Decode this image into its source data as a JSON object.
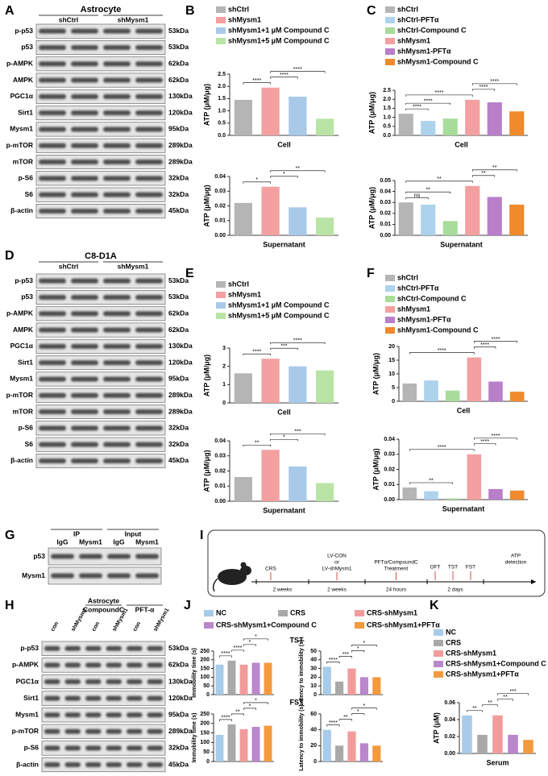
{
  "panels": [
    "A",
    "B",
    "C",
    "D",
    "E",
    "F",
    "G",
    "H",
    "I",
    "J",
    "K"
  ],
  "blots": [
    {
      "title": "Astrocyte",
      "groups": [
        "shCtrl",
        "shMysm1"
      ],
      "rows": [
        {
          "label": "p-p53",
          "size": "53kDa"
        },
        {
          "label": "p53",
          "size": "53kDa"
        },
        {
          "label": "p-AMPK",
          "size": "62kDa"
        },
        {
          "label": "AMPK",
          "size": "62kDa"
        },
        {
          "label": "PGC1α",
          "size": "130kDa"
        },
        {
          "label": "Sirt1",
          "size": "120kDa"
        },
        {
          "label": "Mysm1",
          "size": "95kDa"
        },
        {
          "label": "p-mTOR",
          "size": "289kDa"
        },
        {
          "label": "mTOR",
          "size": "289kDa"
        },
        {
          "label": "p-S6",
          "size": "32kDa"
        },
        {
          "label": "S6",
          "size": "32kDa"
        },
        {
          "label": "β-actin",
          "size": "45kDa"
        }
      ]
    },
    {
      "title": "C8-D1A",
      "groups": [
        "shCtrl",
        "shMysm1"
      ],
      "rows": [
        {
          "label": "p-p53",
          "size": "53kDa"
        },
        {
          "label": "p53",
          "size": "53kDa"
        },
        {
          "label": "p-AMPK",
          "size": "62kDa"
        },
        {
          "label": "AMPK",
          "size": "62kDa"
        },
        {
          "label": "PGC1α",
          "size": "130kDa"
        },
        {
          "label": "Sirt1",
          "size": "120kDa"
        },
        {
          "label": "Mysm1",
          "size": "95kDa"
        },
        {
          "label": "p-mTOR",
          "size": "289kDa"
        },
        {
          "label": "mTOR",
          "size": "289kDa"
        },
        {
          "label": "p-S6",
          "size": "32kDa"
        },
        {
          "label": "S6",
          "size": "32kDa"
        },
        {
          "label": "β-actin",
          "size": "45kDa"
        }
      ]
    },
    {
      "groups": [
        "IP",
        "Input"
      ],
      "lanes": [
        "IgG",
        "Mysm1",
        "IgG",
        "Mysm1"
      ],
      "rows": [
        {
          "label": "p53"
        },
        {
          "label": "Mysm1"
        }
      ]
    },
    {
      "title": "Astrocyte",
      "groups": [
        "CompoundC",
        "PFT-α"
      ],
      "lanes": [
        "con",
        "shMysm1",
        "con",
        "shMysm1",
        "con",
        "shMysm1"
      ],
      "rows": [
        {
          "label": "p-p53",
          "size": "53kDa"
        },
        {
          "label": "p-AMPK",
          "size": "62kDa"
        },
        {
          "label": "PGC1α",
          "size": "130kDa"
        },
        {
          "label": "Sirt1",
          "size": "120kDa"
        },
        {
          "label": "Mysm1",
          "size": "95kDa"
        },
        {
          "label": "p-mTOR",
          "size": "289kDa"
        },
        {
          "label": "p-S6",
          "size": "32kDa"
        },
        {
          "label": "β-actin",
          "size": "45kDa"
        }
      ]
    }
  ],
  "schematic": {
    "steps": [
      {
        "lines": [
          "CRS"
        ],
        "duration": "2 weeks"
      },
      {
        "lines": [
          "LV-CON",
          "or",
          "LV-shMysm1"
        ],
        "duration": "2 weeks"
      },
      {
        "lines": [
          "PFTα/CompoundC",
          "Treatment"
        ],
        "duration": "24 hours"
      },
      {
        "tests": [
          "OFT",
          "TST",
          "FST"
        ],
        "duration": "2 days"
      }
    ],
    "end": [
      "ATP",
      "detection"
    ]
  },
  "chart_data": [
    {
      "type": "bar",
      "categories": [
        "shCtrl",
        "shMysm1",
        "shMysm1+1 µM Compound C",
        "shMysm1+5 µM Compound C"
      ],
      "colors": [
        "#b5b5b5",
        "#f4a0a0",
        "#a9c9e8",
        "#b9e4a6"
      ],
      "values": [
        1.45,
        1.95,
        1.58,
        0.68
      ],
      "xlabel": "Cell",
      "ylabel": "ATP (μM/μg)",
      "ylim": [
        0,
        2.5
      ],
      "yticks": [
        {
          "value": 0,
          "label": "0.0"
        },
        0.5,
        {
          "value": 1,
          "label": "1.0"
        },
        1.5,
        {
          "value": 2,
          "label": "2.0"
        },
        2.5
      ],
      "significance": [
        {
          "groups": [
            0,
            1
          ],
          "label": "****"
        },
        {
          "groups": [
            1,
            2
          ],
          "label": "****"
        },
        {
          "groups": [
            1,
            3
          ],
          "label": "****"
        }
      ]
    },
    {
      "type": "bar",
      "colors": [
        "#b5b5b5",
        "#f4a0a0",
        "#a9c9e8",
        "#b9e4a6"
      ],
      "values": [
        0.022,
        0.033,
        0.019,
        0.012
      ],
      "xlabel": "Supernatant",
      "ylabel": "ATP (μM/μg)",
      "ylim": [
        0,
        0.04
      ],
      "yticks": [
        {
          "value": 0,
          "label": "0.00"
        },
        0.01,
        0.02,
        0.03,
        0.04
      ],
      "significance": [
        {
          "groups": [
            0,
            1
          ],
          "label": "*"
        },
        {
          "groups": [
            1,
            2
          ],
          "label": "*"
        },
        {
          "groups": [
            1,
            3
          ],
          "label": "**"
        }
      ]
    },
    {
      "type": "bar",
      "categories": [
        "shCtrl",
        "shCtrl-PFTα",
        "shCtrl-Compound C",
        "shMysm1",
        "shMysm1-PFTα",
        "shMysm1-Compound C"
      ],
      "colors": [
        "#b5b5b5",
        "#add2ec",
        "#a8dc9a",
        "#f4a0a0",
        "#b97fc9",
        "#f08a2c"
      ],
      "values": [
        1.2,
        0.8,
        0.93,
        1.97,
        1.83,
        1.33
      ],
      "xlabel": "Cell",
      "ylabel": "ATP (μM/μg)",
      "ylim": [
        0,
        2.5
      ],
      "yticks": [
        {
          "value": 0,
          "label": "0.0"
        },
        0.5,
        {
          "value": 1,
          "label": "1.0"
        },
        1.5,
        {
          "value": 2,
          "label": "2.0"
        },
        2.5
      ],
      "significance": [
        {
          "groups": [
            0,
            1
          ],
          "label": "****"
        },
        {
          "groups": [
            0,
            2
          ],
          "label": "****"
        },
        {
          "groups": [
            0,
            3
          ],
          "label": "****"
        },
        {
          "groups": [
            3,
            4
          ],
          "label": "****"
        },
        {
          "groups": [
            3,
            5
          ],
          "label": "****"
        }
      ]
    },
    {
      "type": "bar",
      "colors": [
        "#b5b5b5",
        "#add2ec",
        "#a8dc9a",
        "#f4a0a0",
        "#b97fc9",
        "#f08a2c"
      ],
      "values": [
        0.03,
        0.028,
        0.013,
        0.045,
        0.035,
        0.028
      ],
      "xlabel": "Supernatant",
      "ylabel": "ATP (μM/μg)",
      "ylim": [
        0,
        0.05
      ],
      "yticks": [
        {
          "value": 0,
          "label": "0.00"
        },
        0.01,
        0.02,
        0.03,
        0.04,
        0.05
      ],
      "significance": [
        {
          "groups": [
            0,
            1
          ],
          "label": "ns"
        },
        {
          "groups": [
            0,
            2
          ],
          "label": "**"
        },
        {
          "groups": [
            0,
            3
          ],
          "label": "**"
        },
        {
          "groups": [
            3,
            4
          ],
          "label": "**"
        },
        {
          "groups": [
            3,
            5
          ],
          "label": "**"
        }
      ]
    },
    {
      "type": "bar",
      "categories": [
        "shCtrl",
        "shMysm1",
        "shMysm1+1 µM Compound C",
        "shMysm1+5 µM Compound C"
      ],
      "colors": [
        "#b5b5b5",
        "#f4a0a0",
        "#a9c9e8",
        "#b9e4a6"
      ],
      "values": [
        1.62,
        2.42,
        2.0,
        1.78
      ],
      "xlabel": "Cell",
      "ylabel": "ATP (μM/μg)",
      "ylim": [
        0,
        3
      ],
      "yticks": [
        0,
        1,
        2,
        3
      ],
      "significance": [
        {
          "groups": [
            0,
            1
          ],
          "label": "****"
        },
        {
          "groups": [
            1,
            2
          ],
          "label": "***"
        },
        {
          "groups": [
            1,
            3
          ],
          "label": "****"
        }
      ]
    },
    {
      "type": "bar",
      "colors": [
        "#b5b5b5",
        "#f4a0a0",
        "#a9c9e8",
        "#b9e4a6"
      ],
      "values": [
        0.016,
        0.034,
        0.023,
        0.012
      ],
      "xlabel": "Supernatant",
      "ylabel": "ATP (μM/μg)",
      "ylim": [
        0,
        0.04
      ],
      "yticks": [
        {
          "value": 0,
          "label": "0.00"
        },
        0.01,
        0.02,
        0.03,
        0.04
      ],
      "significance": [
        {
          "groups": [
            0,
            1
          ],
          "label": "**"
        },
        {
          "groups": [
            1,
            2
          ],
          "label": "*"
        },
        {
          "groups": [
            1,
            3
          ],
          "label": "***"
        }
      ]
    },
    {
      "type": "bar",
      "categories": [
        "shCtrl",
        "shCtrl-PFTα",
        "shCtrl-Compound C",
        "shMysm1",
        "shMysm1-PFTα",
        "shMysm1-Compound C"
      ],
      "colors": [
        "#b5b5b5",
        "#add2ec",
        "#a8dc9a",
        "#f4a0a0",
        "#b97fc9",
        "#f08a2c"
      ],
      "values": [
        6.5,
        7.6,
        3.9,
        16,
        7.2,
        3.5
      ],
      "xlabel": "Cell",
      "ylabel": "ATP (μM/μg)",
      "ylim": [
        0,
        20
      ],
      "yticks": [
        0,
        5,
        10,
        15,
        20
      ],
      "significance": [
        {
          "groups": [
            0,
            3
          ],
          "label": "****"
        },
        {
          "groups": [
            3,
            4
          ],
          "label": "****"
        },
        {
          "groups": [
            3,
            5
          ],
          "label": "****"
        }
      ]
    },
    {
      "type": "bar",
      "colors": [
        "#b5b5b5",
        "#add2ec",
        "#a8dc9a",
        "#f4a0a0",
        "#b97fc9",
        "#f08a2c"
      ],
      "values": [
        0.008,
        0.0055,
        0.0008,
        0.03,
        0.007,
        0.006
      ],
      "xlabel": "Supernatant",
      "ylabel": "ATP (μM/μg)",
      "ylim": [
        0,
        0.04
      ],
      "yticks": [
        {
          "value": 0,
          "label": "0.00"
        },
        0.01,
        0.02,
        0.03,
        0.04
      ],
      "significance": [
        {
          "groups": [
            0,
            2
          ],
          "label": "**"
        },
        {
          "groups": [
            0,
            3
          ],
          "label": "****"
        },
        {
          "groups": [
            3,
            4
          ],
          "label": "****"
        },
        {
          "groups": [
            3,
            5
          ],
          "label": "****"
        }
      ]
    },
    {
      "type": "bar",
      "title": "TST",
      "categories": [
        "NC",
        "CRS",
        "CRS-shMysm1",
        "CRS-shMysm1+Compound C",
        "CRS-shMysm1+PFTα"
      ],
      "colors": [
        "#a7cbe8",
        "#a9a9a9",
        "#f29b9b",
        "#b987cc",
        "#f39a3e"
      ],
      "values": [
        172,
        195,
        172,
        183,
        183
      ],
      "ylabel": "Immobility time (s)",
      "ylim": [
        0,
        250
      ],
      "yticks": [
        0,
        50,
        100,
        150,
        200,
        250
      ],
      "significance": [
        {
          "groups": [
            0,
            1
          ],
          "label": "****"
        },
        {
          "groups": [
            1,
            2
          ],
          "label": "****"
        },
        {
          "groups": [
            2,
            3
          ],
          "label": "*"
        },
        {
          "groups": [
            2,
            4
          ],
          "label": "*"
        }
      ]
    },
    {
      "type": "bar",
      "colors": [
        "#a7cbe8",
        "#a9a9a9",
        "#f29b9b",
        "#b987cc",
        "#f39a3e"
      ],
      "values": [
        32,
        15,
        30,
        20,
        20
      ],
      "ylabel": "Latency to immobility (s)",
      "ylim": [
        0,
        50
      ],
      "yticks": [
        0,
        10,
        20,
        30,
        40,
        50
      ],
      "significance": [
        {
          "groups": [
            0,
            1
          ],
          "label": "****"
        },
        {
          "groups": [
            1,
            2
          ],
          "label": "***"
        },
        {
          "groups": [
            2,
            3
          ],
          "label": "*"
        },
        {
          "groups": [
            2,
            4
          ],
          "label": "*"
        }
      ]
    },
    {
      "type": "bar",
      "title": "FST",
      "colors": [
        "#a7cbe8",
        "#a9a9a9",
        "#f29b9b",
        "#b987cc",
        "#f39a3e"
      ],
      "values": [
        140,
        195,
        170,
        182,
        188
      ],
      "ylabel": "Immobility time (s)",
      "ylim": [
        0,
        250
      ],
      "yticks": [
        0,
        50,
        100,
        150,
        200,
        250
      ],
      "significance": [
        {
          "groups": [
            0,
            1
          ],
          "label": "****"
        },
        {
          "groups": [
            1,
            2
          ],
          "label": "**"
        },
        {
          "groups": [
            2,
            3
          ],
          "label": "*"
        },
        {
          "groups": [
            2,
            4
          ],
          "label": "*"
        }
      ]
    },
    {
      "type": "bar",
      "colors": [
        "#a7cbe8",
        "#a9a9a9",
        "#f29b9b",
        "#b987cc",
        "#f39a3e"
      ],
      "values": [
        40,
        20,
        38,
        23,
        20
      ],
      "ylabel": "Latency to immobility (s)",
      "ylim": [
        0,
        60
      ],
      "yticks": [
        0,
        20,
        40,
        60
      ],
      "significance": [
        {
          "groups": [
            0,
            1
          ],
          "label": "****"
        },
        {
          "groups": [
            1,
            2
          ],
          "label": "**"
        },
        {
          "groups": [
            2,
            3
          ],
          "label": "*"
        },
        {
          "groups": [
            2,
            4
          ],
          "label": "*"
        }
      ]
    },
    {
      "type": "bar",
      "categories": [
        "NC",
        "CRS",
        "CRS-shMysm1",
        "CRS-shMysm1+Compound C",
        "CRS-shMysm1+PFTα"
      ],
      "colors": [
        "#a7cbe8",
        "#a9a9a9",
        "#f29b9b",
        "#b987cc",
        "#f39a3e"
      ],
      "values": [
        0.045,
        0.022,
        0.045,
        0.022,
        0.016
      ],
      "xlabel": "Serum",
      "ylabel": "ATP (μM)",
      "ylim": [
        0,
        0.06
      ],
      "yticks": [
        {
          "value": 0,
          "label": "0.00"
        },
        0.02,
        0.04,
        0.06
      ],
      "significance": [
        {
          "groups": [
            0,
            1
          ],
          "label": "**"
        },
        {
          "groups": [
            1,
            2
          ],
          "label": "**"
        },
        {
          "groups": [
            2,
            3
          ],
          "label": "**"
        },
        {
          "groups": [
            2,
            4
          ],
          "label": "***"
        }
      ]
    }
  ]
}
